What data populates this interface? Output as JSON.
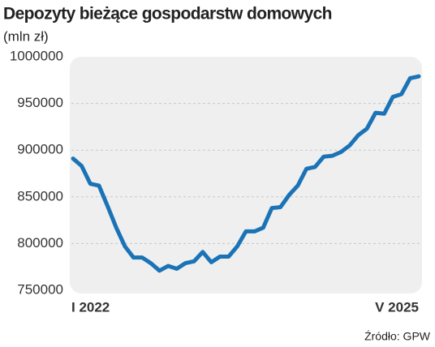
{
  "chart_data": {
    "type": "line",
    "title": "Depozyty bieżące gospodarstw domowych",
    "subtitle": "(mln zł)",
    "source": "Źródło: GPW",
    "categories": [
      "I 2022",
      null,
      null,
      null,
      null,
      null,
      null,
      null,
      null,
      null,
      null,
      null,
      null,
      null,
      null,
      null,
      null,
      null,
      null,
      null,
      null,
      null,
      null,
      null,
      null,
      null,
      null,
      null,
      null,
      null,
      null,
      null,
      null,
      null,
      null,
      null,
      null,
      null,
      null,
      null,
      "V 2025"
    ],
    "series": [
      {
        "name": "Depozyty",
        "color": "#1a73b6",
        "values": [
          891000,
          883000,
          864000,
          862000,
          840000,
          817000,
          797000,
          785000,
          785000,
          779000,
          771000,
          776000,
          773000,
          779000,
          781000,
          791000,
          780000,
          786000,
          786000,
          797000,
          813000,
          813000,
          817000,
          838000,
          839000,
          852000,
          862000,
          880000,
          882000,
          893000,
          894000,
          898000,
          905000,
          916000,
          923000,
          940000,
          939000,
          957000,
          960000,
          977000,
          979000
        ]
      }
    ],
    "ylim": [
      750000,
      1000000
    ],
    "yticks": [
      750000,
      800000,
      850000,
      900000,
      950000,
      1000000
    ],
    "grid": true
  }
}
